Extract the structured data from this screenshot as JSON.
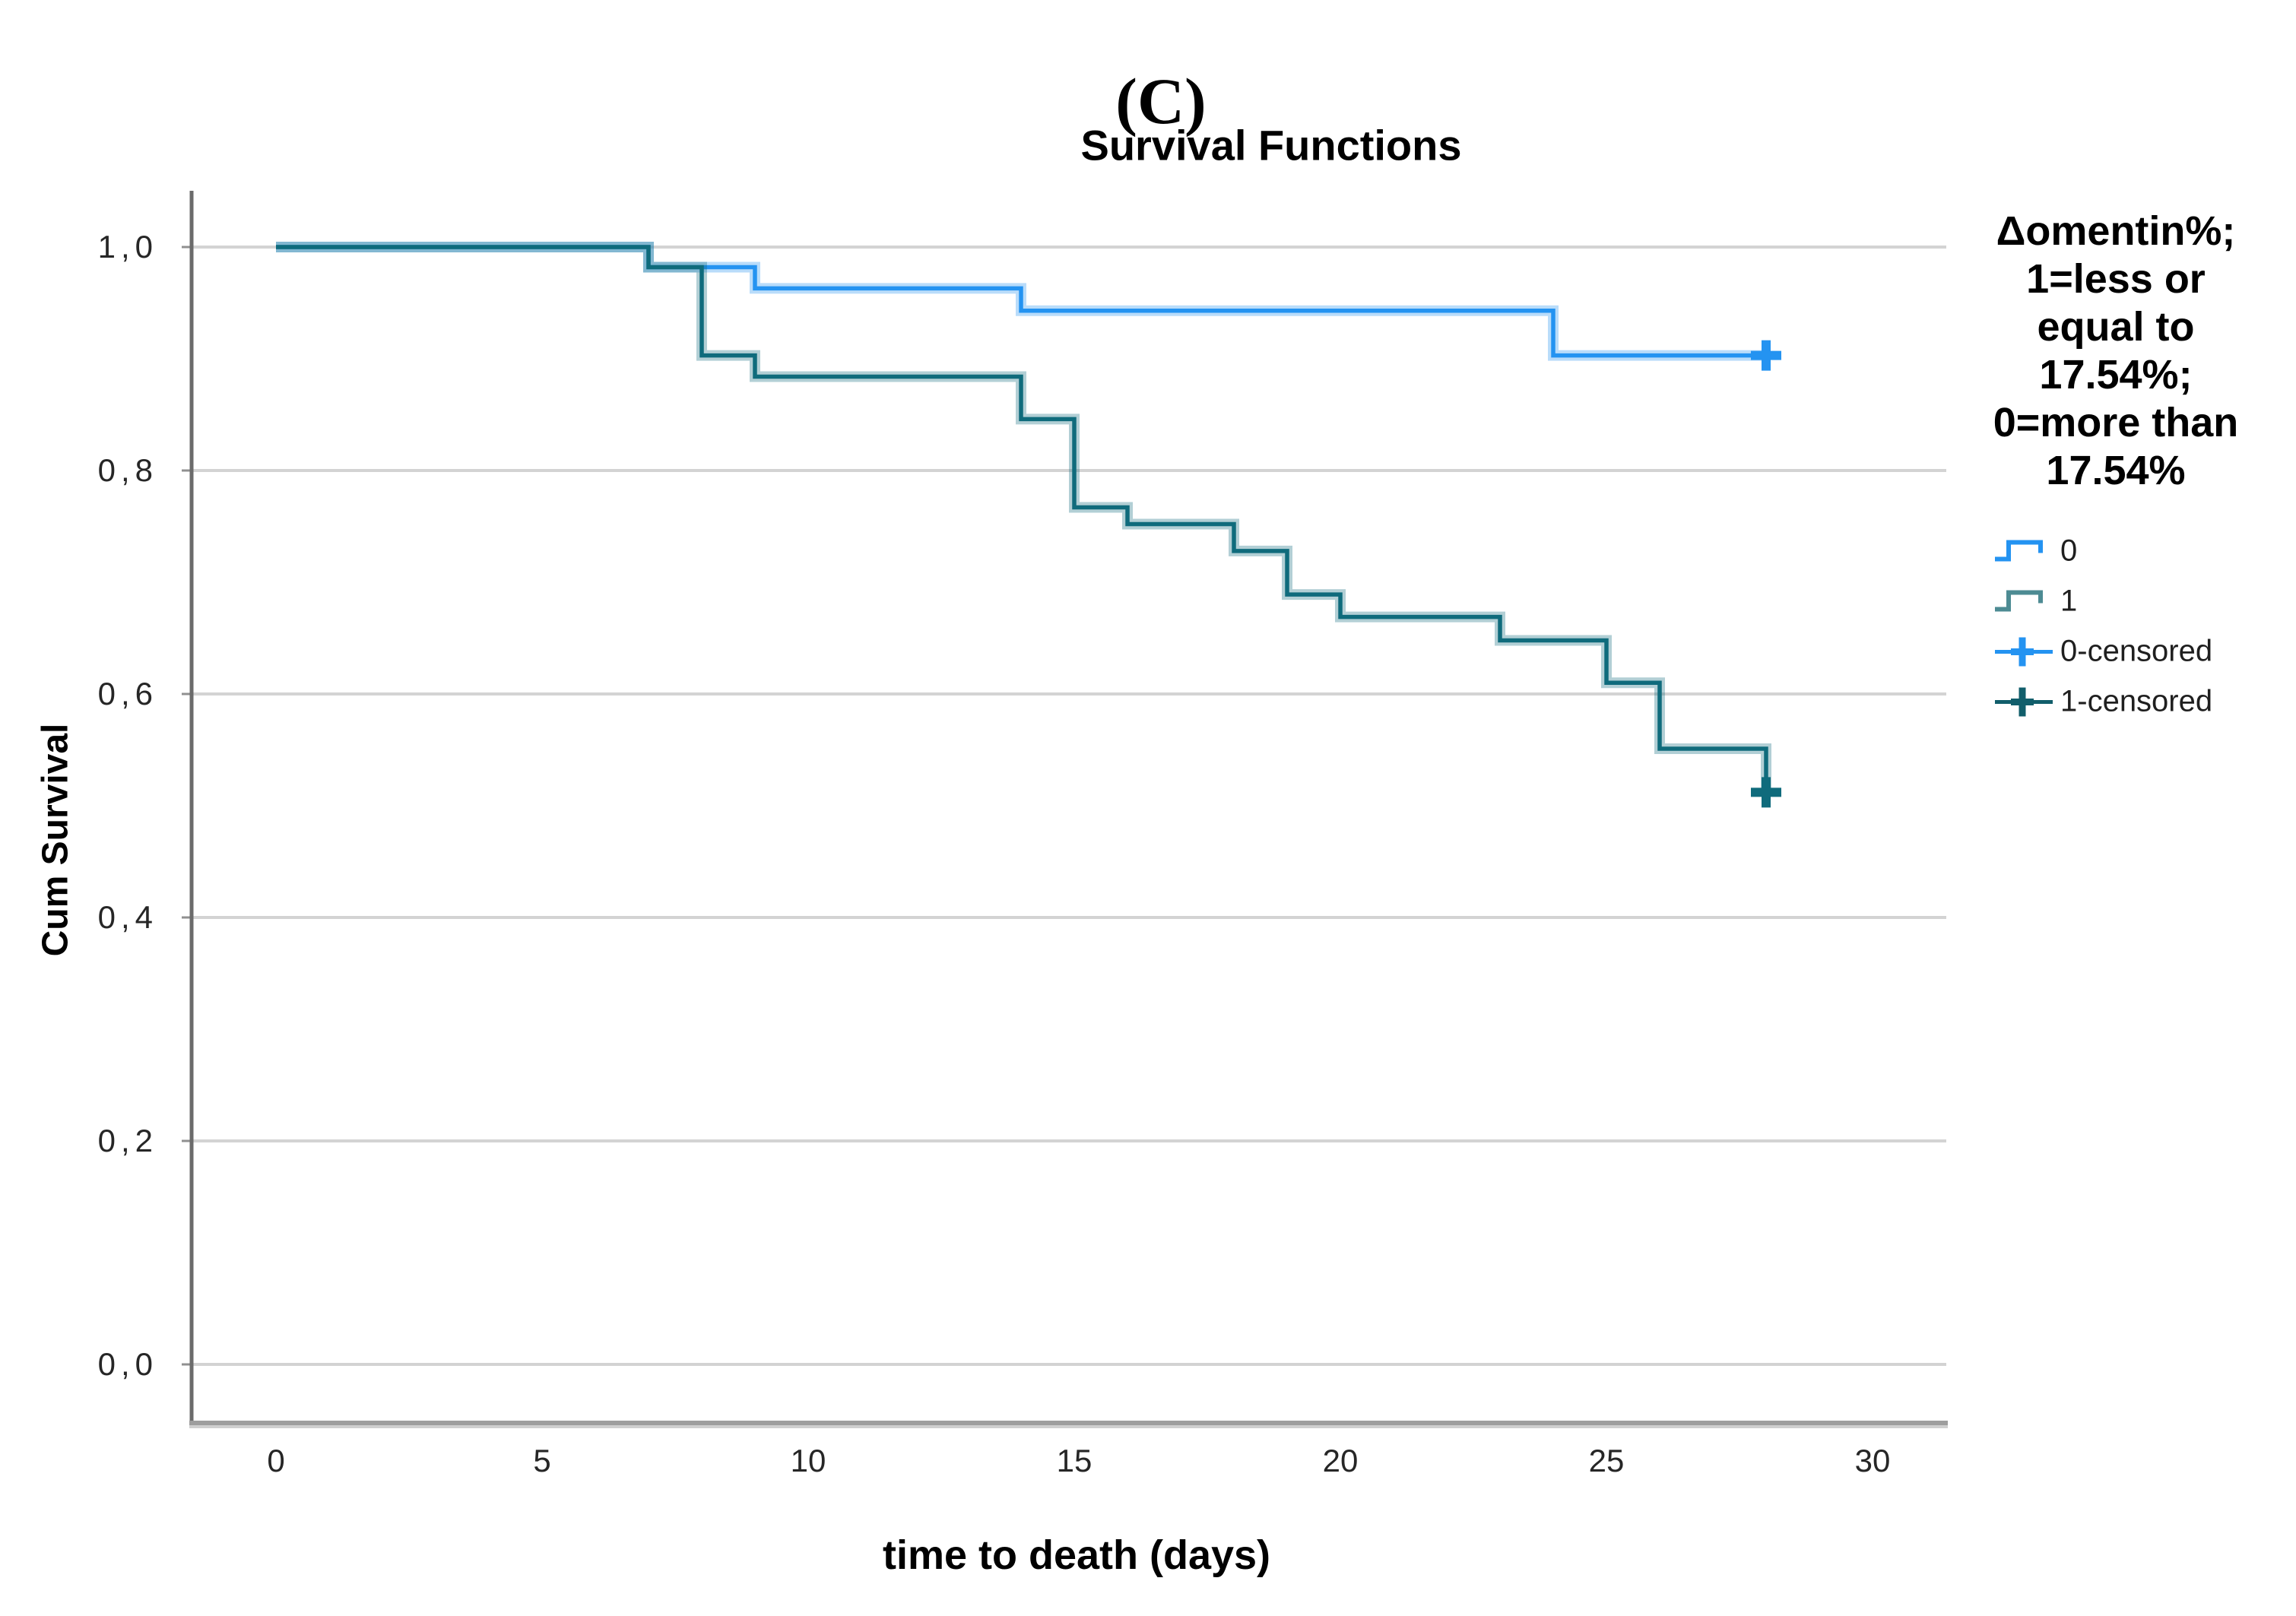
{
  "figure_label": "(C)",
  "chart_title": "Survival Functions",
  "axes": {
    "y_title": "Cum Survival",
    "x_title": "time to death (days)",
    "y_tick_labels": [
      "1,0",
      "0,8",
      "0,6",
      "0,4",
      "0,2",
      "0,0"
    ],
    "y_tick_values": [
      1.0,
      0.8,
      0.6,
      0.4,
      0.2,
      0.0
    ],
    "x_tick_labels": [
      "0",
      "5",
      "10",
      "15",
      "20",
      "25",
      "30"
    ],
    "x_tick_values": [
      0,
      5,
      10,
      15,
      20,
      25,
      30
    ]
  },
  "legend": {
    "title_lines": [
      "Δomentin%;",
      "1=less or",
      "equal to",
      "17.54%;",
      "0=more than",
      "17.54%"
    ],
    "entries": [
      {
        "label": "0",
        "symbol": "step",
        "color": "#2493f1"
      },
      {
        "label": "1",
        "symbol": "step",
        "color": "#4d8b93"
      },
      {
        "label": "0-censored",
        "symbol": "plus",
        "color": "#2493f1"
      },
      {
        "label": "1-censored",
        "symbol": "plus",
        "color": "#115e6b"
      }
    ]
  },
  "colors": {
    "series0": "#2493f1",
    "series1": "#0f6b7c",
    "grid": "#d3d3d3",
    "axis_spine": "#6b6b6b",
    "axis_bottom": "#9e9e9e",
    "tick": "#909090",
    "text": "#262626"
  },
  "chart_data": {
    "type": "line",
    "subtype": "kaplan-meier-step",
    "title": "Survival Functions",
    "xlabel": "time to death (days)",
    "ylabel": "Cum Survival",
    "xlim": [
      0,
      31.4
    ],
    "ylim": [
      -0.05,
      1.05
    ],
    "x_ticks": [
      0,
      5,
      10,
      15,
      20,
      25,
      30
    ],
    "y_ticks": [
      0.0,
      0.2,
      0.4,
      0.6,
      0.8,
      1.0
    ],
    "grid": "horizontal",
    "legend_position": "right",
    "series": [
      {
        "name": "0",
        "group_definition": "0=more than 17.54%",
        "color": "#2493f1",
        "points": [
          [
            0,
            1.0
          ],
          [
            7,
            0.982
          ],
          [
            9,
            0.963
          ],
          [
            14,
            0.943
          ],
          [
            24,
            0.903
          ],
          [
            28,
            0.903
          ]
        ],
        "censored": [
          [
            28,
            0.903
          ]
        ]
      },
      {
        "name": "1",
        "group_definition": "1=less or equal to 17.54%",
        "color": "#0f6b7c",
        "points": [
          [
            0,
            1.0
          ],
          [
            7,
            0.982
          ],
          [
            8,
            0.903
          ],
          [
            9,
            0.884
          ],
          [
            14,
            0.846
          ],
          [
            15,
            0.767
          ],
          [
            16,
            0.752
          ],
          [
            18,
            0.728
          ],
          [
            19,
            0.689
          ],
          [
            20,
            0.669
          ],
          [
            23,
            0.648
          ],
          [
            25,
            0.61
          ],
          [
            26,
            0.551
          ],
          [
            28,
            0.512
          ]
        ],
        "censored": [
          [
            28,
            0.512
          ]
        ]
      }
    ]
  }
}
